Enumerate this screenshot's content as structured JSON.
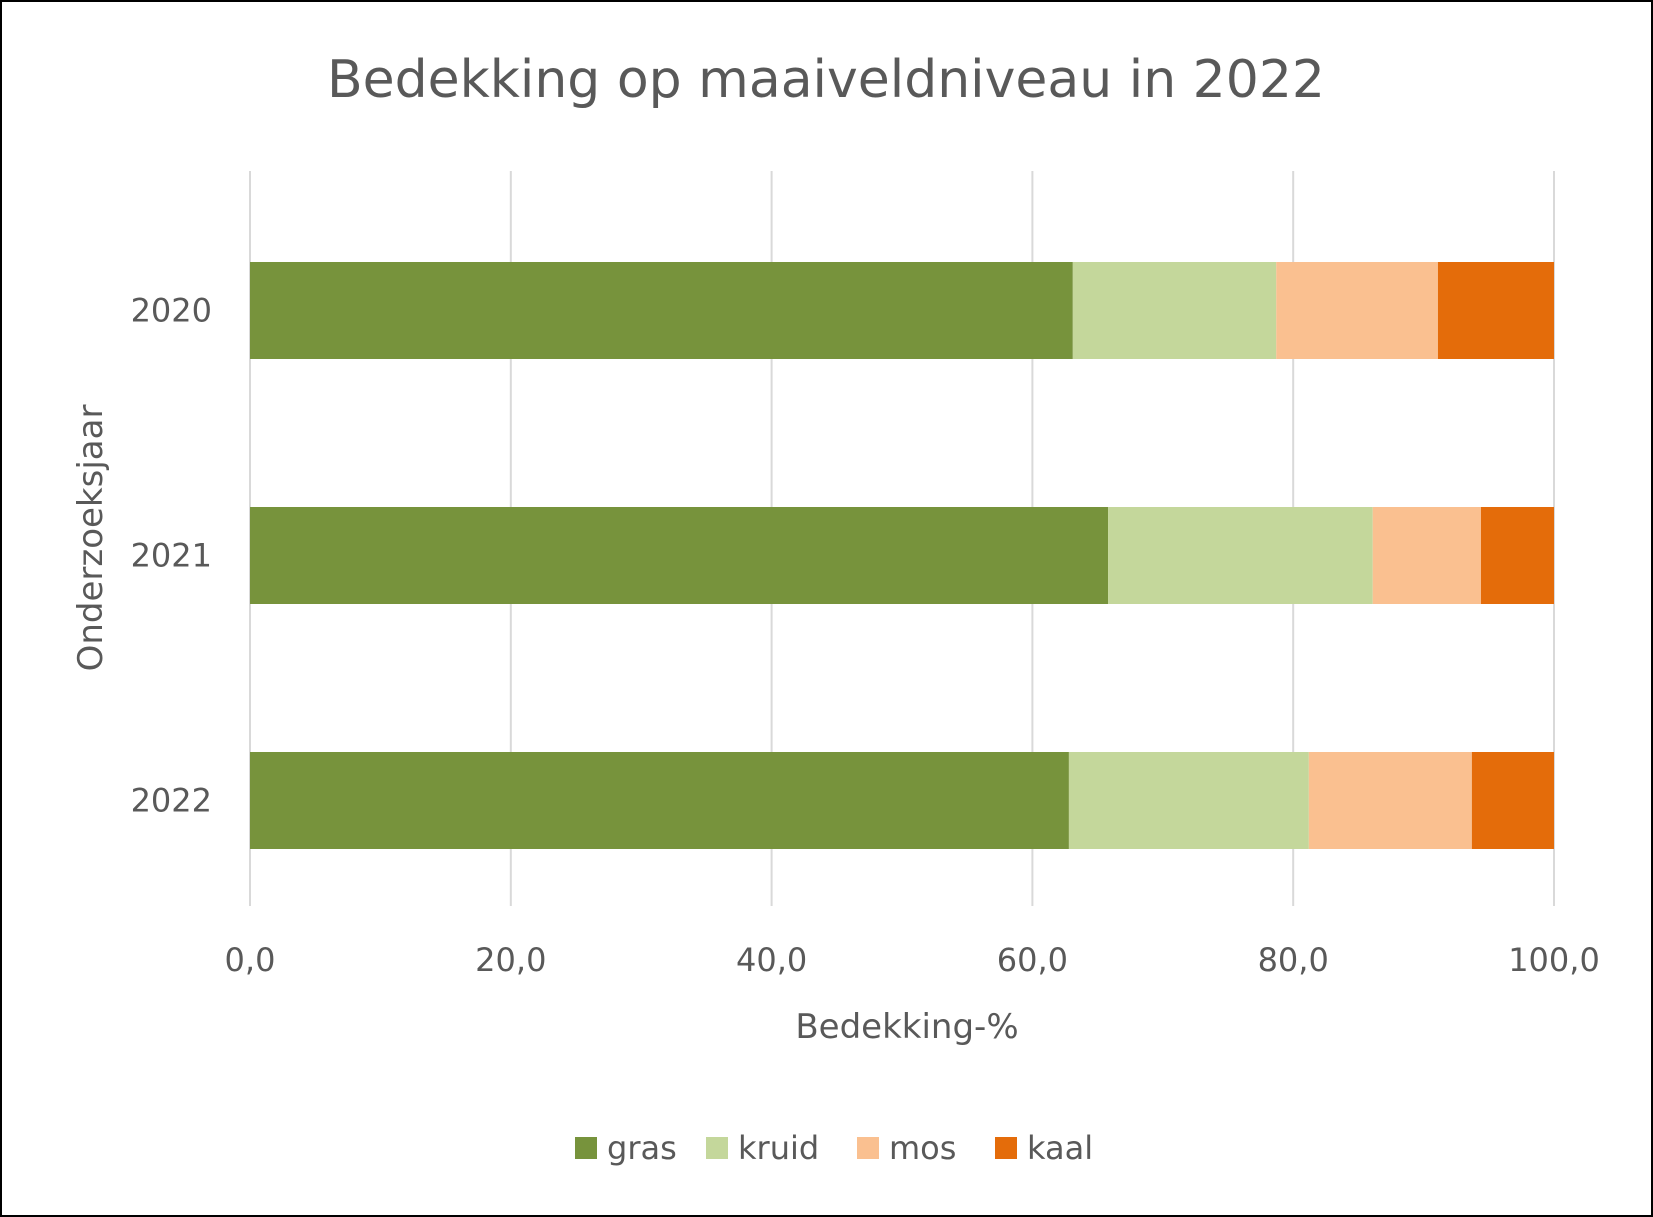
{
  "chart_data": {
    "type": "bar",
    "orientation": "horizontal",
    "stacked": true,
    "title": "Bedekking op maaiveldniveau in 2022",
    "xlabel": "Bedekking-%",
    "ylabel": "Onderzoeksjaar",
    "categories": [
      "2020",
      "2021",
      "2022"
    ],
    "xlim": [
      0,
      100
    ],
    "xticks": [
      "0,0",
      "20,0",
      "40,0",
      "60,0",
      "80,0",
      "100,0"
    ],
    "xtick_values": [
      0,
      20,
      40,
      60,
      80,
      100
    ],
    "grid": true,
    "legend_position": "bottom",
    "series": [
      {
        "name": "gras",
        "color": "#77933C",
        "values": [
          63.1,
          65.8,
          62.8
        ]
      },
      {
        "name": "kruid",
        "color": "#C4D79B",
        "values": [
          15.6,
          20.3,
          18.4
        ]
      },
      {
        "name": "mos",
        "color": "#FAC090",
        "values": [
          12.4,
          8.3,
          12.5
        ]
      },
      {
        "name": "kaal",
        "color": "#E46C0A",
        "values": [
          8.9,
          5.6,
          6.3
        ]
      }
    ]
  }
}
